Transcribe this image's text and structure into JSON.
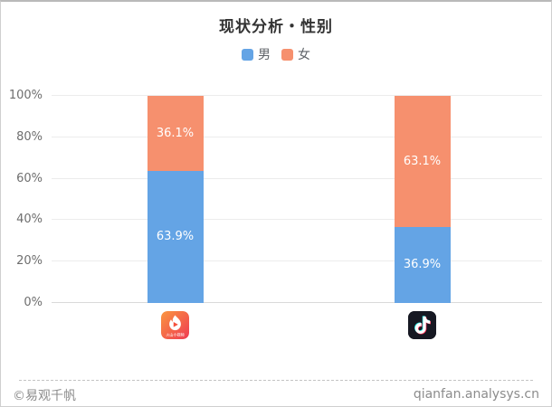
{
  "header": {
    "title": "现状分析・性别"
  },
  "legend": {
    "items": [
      {
        "label": "男",
        "color": "#64A4E5"
      },
      {
        "label": "女",
        "color": "#F6906E"
      }
    ]
  },
  "chart_data": {
    "type": "bar",
    "stacked": true,
    "orientation": "vertical",
    "categories": [
      "huoshan-video-app-icon",
      "douyin-app-icon"
    ],
    "series": [
      {
        "name": "男",
        "color": "#64A4E5",
        "values": [
          63.9,
          36.9
        ],
        "labels": [
          "63.9%",
          "36.9%"
        ]
      },
      {
        "name": "女",
        "color": "#F6906E",
        "values": [
          36.1,
          63.1
        ],
        "labels": [
          "36.1%",
          "63.1%"
        ]
      }
    ],
    "title": "现状分析・性别",
    "ylim": [
      0,
      100
    ],
    "yticks": [
      "0%",
      "20%",
      "40%",
      "60%",
      "80%",
      "100%"
    ],
    "ytick_values": [
      0,
      20,
      40,
      60,
      80,
      100
    ],
    "grid": true,
    "legend_position": "top",
    "value_label_color": "#ffffff"
  },
  "icons": {
    "huoshan_caption": "火山小视频"
  },
  "footer": {
    "watermark": "©易观千帆",
    "site": "qianfan.analysys.cn"
  },
  "colors": {
    "male": "#64A4E5",
    "female": "#F6906E",
    "gridline": "#ececec",
    "axis_line": "#d9d9d9",
    "title": "#333333",
    "tick_label": "#6e6e6e",
    "footer_text": "#8c8c8c"
  }
}
